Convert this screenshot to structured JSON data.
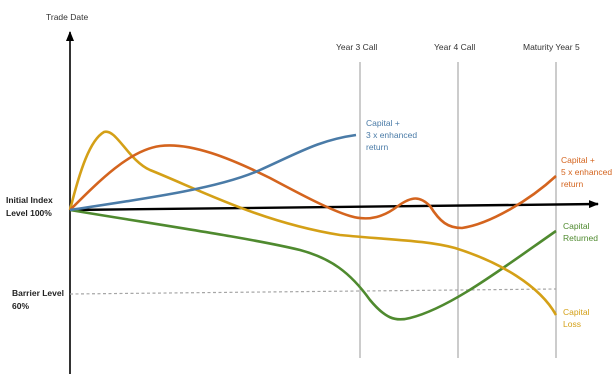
{
  "axes": {
    "y_label": "Trade Date",
    "initial_level": [
      "Initial Index",
      "Level 100%"
    ],
    "barrier_level": [
      "Barrier Level",
      "60%"
    ]
  },
  "milestones": [
    "Year 3 Call",
    "Year 4 Call",
    "Maturity Year 5"
  ],
  "outcomes": {
    "blue": [
      "Capital +",
      "3 x enhanced",
      "return"
    ],
    "orange": [
      "Capital +",
      "5 x enhanced",
      "return"
    ],
    "green": [
      "Capital",
      "Returned"
    ],
    "yellow": [
      "Capital",
      "Loss"
    ]
  },
  "colors": {
    "blue": "#4a7ba7",
    "orange": "#d4641e",
    "yellow": "#d4a017",
    "green": "#4f8a2f",
    "axis": "#000000",
    "barrier": "#a6a6a6",
    "milestone_line": "#9a9a9a"
  }
}
